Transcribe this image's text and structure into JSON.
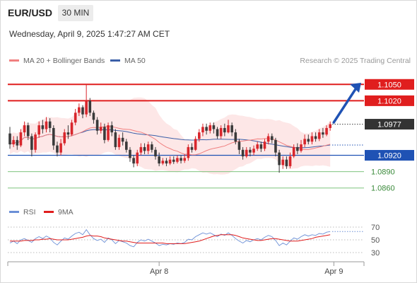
{
  "header": {
    "symbol": "EUR/USD",
    "timeframe": "30 MIN",
    "timestamp": "Wednesday, April 9, 2025 1:47:27 AM CET"
  },
  "legend": {
    "ma20_label": "MA 20 + Bollinger Bands",
    "ma50_label": "MA 50",
    "research": "Research © 2025 Trading Central"
  },
  "rsi_legend": {
    "rsi_label": "RSI",
    "ma_label": "9MA"
  },
  "colors": {
    "up": "#d8262c",
    "down": "#3a3a3a",
    "ma20": "#f08080",
    "ma50": "#3b5fa8",
    "band_fill": "#fde3e3",
    "resistance": "#e01e1e",
    "pivot": "#1f52b4",
    "support": "#7fc47f",
    "support_text": "#3a8a3a",
    "last": "#333333",
    "rsi": "#6b8fd6",
    "rsi_ma": "#e01e1e"
  },
  "chart_data": [
    {
      "type": "candlestick",
      "y_range": [
        1.0835,
        1.1075
      ],
      "x_ticks": [
        {
          "index": 41,
          "label": "Apr 8"
        },
        {
          "index": 89,
          "label": "Apr 9"
        }
      ],
      "levels": [
        {
          "value": 1.105,
          "label": "1.1050",
          "kind": "resistance"
        },
        {
          "value": 1.102,
          "label": "1.1020",
          "kind": "resistance"
        },
        {
          "value": 1.0977,
          "label": "1.0977",
          "kind": "last"
        },
        {
          "value": 1.092,
          "label": "1.0920",
          "kind": "pivot"
        },
        {
          "value": 1.089,
          "label": "1.0890",
          "kind": "support"
        },
        {
          "value": 1.086,
          "label": "1.0860",
          "kind": "support"
        }
      ],
      "forecast_arrow": {
        "from": 1.0975,
        "to": 1.1053
      },
      "series": [
        {
          "name": "MA 20 + Bollinger Bands"
        },
        {
          "name": "MA 50"
        }
      ],
      "candles": [
        [
          1.096,
          1.094,
          1.0972,
          1.0932
        ],
        [
          1.094,
          1.0948,
          1.0955,
          1.0935
        ],
        [
          1.0948,
          1.0938,
          1.0955,
          1.093
        ],
        [
          1.0938,
          1.0962,
          1.0968,
          1.0935
        ],
        [
          1.0962,
          1.0975,
          1.0982,
          1.0955
        ],
        [
          1.0975,
          1.0955,
          1.098,
          1.0948
        ],
        [
          1.0955,
          1.093,
          1.096,
          1.0918
        ],
        [
          1.093,
          1.0958,
          1.0962,
          1.0925
        ],
        [
          1.0958,
          1.0975,
          1.0982,
          1.0952
        ],
        [
          1.0975,
          1.0968,
          1.0985,
          1.096
        ],
        [
          1.0968,
          1.0982,
          1.099,
          1.0962
        ],
        [
          1.0982,
          1.097,
          1.0988,
          1.0962
        ],
        [
          1.097,
          1.0938,
          1.0975,
          1.093
        ],
        [
          1.0938,
          1.0925,
          1.0945,
          1.0918
        ],
        [
          1.0925,
          1.0942,
          1.095,
          1.092
        ],
        [
          1.0942,
          1.0962,
          1.0968,
          1.0938
        ],
        [
          1.0962,
          1.0958,
          1.0975,
          1.095
        ],
        [
          1.0958,
          1.098,
          1.0985,
          1.0955
        ],
        [
          1.098,
          1.0998,
          1.1005,
          1.0975
        ],
        [
          1.0998,
          1.1008,
          1.1015,
          1.0992
        ],
        [
          1.1008,
          1.0995,
          1.1012,
          1.0988
        ],
        [
          1.0995,
          1.102,
          1.105,
          1.099
        ],
        [
          1.102,
          1.0998,
          1.1025,
          1.0992
        ],
        [
          1.0998,
          1.0985,
          1.1002,
          1.0978
        ],
        [
          1.0985,
          1.0965,
          1.099,
          1.0958
        ],
        [
          1.0965,
          1.0972,
          1.098,
          1.096
        ],
        [
          1.0972,
          1.0948,
          1.0978,
          1.0942
        ],
        [
          1.0948,
          1.0975,
          1.098,
          1.0945
        ],
        [
          1.0975,
          1.0962,
          1.0982,
          1.0955
        ],
        [
          1.0962,
          1.0935,
          1.0968,
          1.093
        ],
        [
          1.0935,
          1.0952,
          1.0958,
          1.093
        ],
        [
          1.0952,
          1.0945,
          1.0962,
          1.0938
        ],
        [
          1.0945,
          1.093,
          1.095,
          1.0925
        ],
        [
          1.093,
          1.0915,
          1.0935,
          1.0908
        ],
        [
          1.0915,
          1.0905,
          1.092,
          1.0898
        ],
        [
          1.0905,
          1.0925,
          1.093,
          1.09
        ],
        [
          1.0925,
          1.0935,
          1.0942,
          1.092
        ],
        [
          1.0935,
          1.0928,
          1.0942,
          1.0922
        ],
        [
          1.0928,
          1.094,
          1.0945,
          1.0922
        ],
        [
          1.094,
          1.093,
          1.0945,
          1.0925
        ],
        [
          1.093,
          1.0918,
          1.0935,
          1.0912
        ],
        [
          1.0918,
          1.0905,
          1.0925,
          1.09
        ],
        [
          1.0905,
          1.091,
          1.0915,
          1.0902
        ],
        [
          1.091,
          1.0905,
          1.0915,
          1.09
        ],
        [
          1.0905,
          1.0912,
          1.0918,
          1.0902
        ],
        [
          1.0912,
          1.0908,
          1.0918,
          1.0904
        ],
        [
          1.0908,
          1.0915,
          1.092,
          1.0905
        ],
        [
          1.0915,
          1.091,
          1.092,
          1.0905
        ],
        [
          1.091,
          1.0915,
          1.0922,
          1.0906
        ],
        [
          1.0915,
          1.0935,
          1.094,
          1.091
        ],
        [
          1.0935,
          1.093,
          1.0942,
          1.0925
        ],
        [
          1.093,
          1.095,
          1.0955,
          1.0928
        ],
        [
          1.095,
          1.0962,
          1.0968,
          1.0945
        ],
        [
          1.0962,
          1.0972,
          1.0978,
          1.0955
        ],
        [
          1.0972,
          1.0965,
          1.0978,
          1.0958
        ],
        [
          1.0965,
          1.0975,
          1.098,
          1.096
        ],
        [
          1.0975,
          1.0968,
          1.098,
          1.096
        ],
        [
          1.0968,
          1.0955,
          1.0972,
          1.095
        ],
        [
          1.0955,
          1.097,
          1.0975,
          1.095
        ],
        [
          1.097,
          1.0962,
          1.0978,
          1.0955
        ],
        [
          1.0962,
          1.0975,
          1.0985,
          1.096
        ],
        [
          1.0975,
          1.0962,
          1.098,
          1.0955
        ],
        [
          1.0962,
          1.0945,
          1.0968,
          1.094
        ],
        [
          1.0945,
          1.093,
          1.095,
          1.0922
        ],
        [
          1.093,
          1.0918,
          1.0935,
          1.0912
        ],
        [
          1.0918,
          1.093,
          1.0935,
          1.0915
        ],
        [
          1.093,
          1.0925,
          1.0935,
          1.0918
        ],
        [
          1.0925,
          1.0932,
          1.0938,
          1.092
        ],
        [
          1.0932,
          1.094,
          1.0945,
          1.0928
        ],
        [
          1.094,
          1.0932,
          1.0945,
          1.0926
        ],
        [
          1.0932,
          1.0945,
          1.095,
          1.0928
        ],
        [
          1.0945,
          1.0955,
          1.096,
          1.094
        ],
        [
          1.0955,
          1.0948,
          1.096,
          1.0942
        ],
        [
          1.0948,
          1.0925,
          1.0952,
          1.0918
        ],
        [
          1.0925,
          1.0902,
          1.093,
          1.0888
        ],
        [
          1.0902,
          1.0912,
          1.0918,
          1.0895
        ],
        [
          1.0912,
          1.09,
          1.0918,
          1.0895
        ],
        [
          1.09,
          1.0918,
          1.0925,
          1.0896
        ],
        [
          1.0918,
          1.0935,
          1.094,
          1.0915
        ],
        [
          1.0935,
          1.0928,
          1.0942,
          1.0922
        ],
        [
          1.0928,
          1.094,
          1.0948,
          1.0925
        ],
        [
          1.094,
          1.095,
          1.0958,
          1.0935
        ],
        [
          1.095,
          1.0945,
          1.0958,
          1.094
        ],
        [
          1.0945,
          1.0955,
          1.0962,
          1.094
        ],
        [
          1.0955,
          1.095,
          1.0962,
          1.0945
        ],
        [
          1.095,
          1.0962,
          1.0968,
          1.0946
        ],
        [
          1.0962,
          1.0958,
          1.097,
          1.0952
        ],
        [
          1.0958,
          1.097,
          1.0975,
          1.0955
        ],
        [
          1.097,
          1.0977,
          1.0982,
          1.0965
        ]
      ]
    },
    {
      "type": "line",
      "y_range": [
        20,
        80
      ],
      "y_ticks": [
        70,
        50,
        30
      ],
      "series": [
        {
          "name": "RSI",
          "values": [
            45,
            48,
            44,
            50,
            52,
            49,
            46,
            52,
            55,
            52,
            56,
            53,
            46,
            42,
            48,
            53,
            51,
            56,
            60,
            62,
            58,
            66,
            58,
            52,
            49,
            51,
            46,
            53,
            50,
            44,
            49,
            47,
            45,
            41,
            39,
            46,
            50,
            48,
            51,
            48,
            45,
            41,
            43,
            42,
            44,
            43,
            45,
            44,
            46,
            51,
            50,
            55,
            58,
            61,
            59,
            61,
            58,
            55,
            59,
            57,
            61,
            57,
            52,
            48,
            45,
            49,
            47,
            50,
            52,
            50,
            54,
            57,
            55,
            49,
            41,
            45,
            42,
            48,
            53,
            51,
            55,
            58,
            56,
            58,
            57,
            60,
            59,
            62,
            63
          ]
        },
        {
          "name": "9MA",
          "values": [
            48,
            48,
            48,
            48,
            49,
            49,
            49,
            50,
            50,
            51,
            51,
            52,
            51,
            50,
            50,
            50,
            50,
            51,
            52,
            53,
            54,
            56,
            57,
            56,
            56,
            55,
            53,
            52,
            51,
            50,
            49,
            48,
            48,
            47,
            46,
            45,
            45,
            45,
            45,
            45,
            45,
            45,
            45,
            44,
            44,
            44,
            44,
            44,
            44,
            45,
            46,
            47,
            48,
            50,
            52,
            54,
            56,
            57,
            58,
            58,
            58,
            58,
            57,
            55,
            53,
            52,
            51,
            50,
            49,
            49,
            50,
            51,
            52,
            52,
            51,
            50,
            49,
            48,
            48,
            48,
            49,
            50,
            51,
            52,
            54,
            55,
            56,
            57,
            58
          ]
        }
      ]
    }
  ]
}
